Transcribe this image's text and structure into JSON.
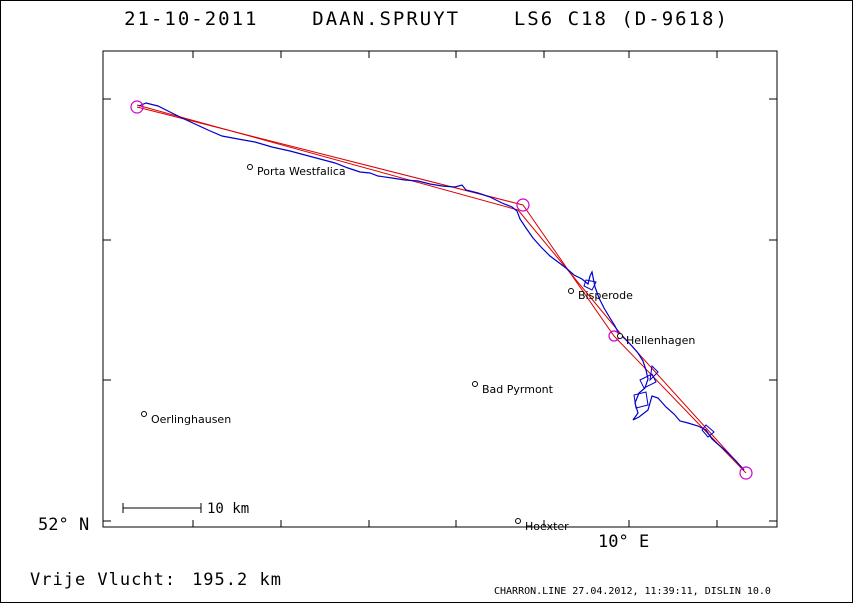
{
  "title": {
    "date": "21-10-2011",
    "pilot": "DAAN.SPRUYT",
    "glider": "LS6 C18 (D-9618)"
  },
  "axis": {
    "lat_label": "52° N",
    "lon_label": "10° E"
  },
  "scale_bar": {
    "label": "10 km"
  },
  "towns": [
    {
      "name": "Porta Westfalica"
    },
    {
      "name": "Bisperode"
    },
    {
      "name": "Hellenhagen"
    },
    {
      "name": "Bad Pyrmont"
    },
    {
      "name": "Oerlinghausen"
    },
    {
      "name": "Hoexter"
    }
  ],
  "summary": {
    "label": "Vrije Vlucht:",
    "value": "195.2 km"
  },
  "footer": "CHARRON.LINE 27.04.2012, 11:39:11, DISLIN 10.0",
  "colors": {
    "track": "#0000cc",
    "task_line": "#dd0000",
    "turnpoint": "#cc00cc"
  }
}
